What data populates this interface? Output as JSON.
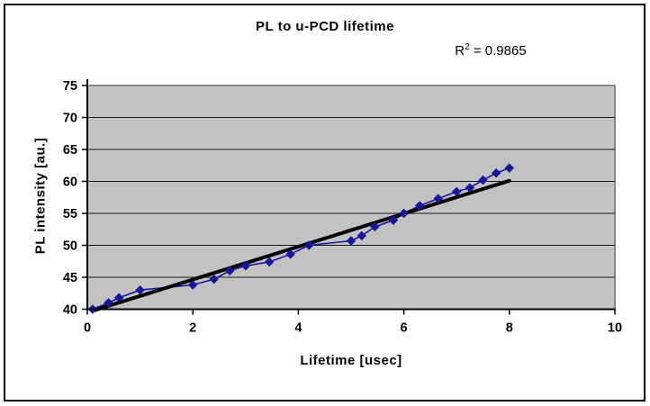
{
  "chart_data": {
    "type": "scatter",
    "title": "PL to u-PCD lifetime",
    "annotation": {
      "prefix": "R",
      "sup": "2",
      "rest": " = 0.9865"
    },
    "xlabel": "Lifetime [usec]",
    "ylabel": "PL intensity [au.]",
    "xlim": [
      0,
      10
    ],
    "ylim": [
      40,
      75
    ],
    "x_ticks": [
      0,
      2,
      4,
      6,
      8,
      10
    ],
    "y_ticks": [
      40,
      45,
      50,
      55,
      60,
      65,
      70,
      75
    ],
    "grid": "horizontal-only",
    "legend": "none",
    "series": [
      {
        "name": "PL intensity vs lifetime",
        "marker": "diamond",
        "points": [
          {
            "x": 0.1,
            "y": 40.0
          },
          {
            "x": 0.4,
            "y": 41.0
          },
          {
            "x": 0.6,
            "y": 41.8
          },
          {
            "x": 1.0,
            "y": 43.0
          },
          {
            "x": 2.0,
            "y": 43.8
          },
          {
            "x": 2.4,
            "y": 44.7
          },
          {
            "x": 2.7,
            "y": 46.0
          },
          {
            "x": 3.0,
            "y": 46.8
          },
          {
            "x": 3.45,
            "y": 47.4
          },
          {
            "x": 3.85,
            "y": 48.6
          },
          {
            "x": 4.2,
            "y": 50.0
          },
          {
            "x": 5.0,
            "y": 50.7
          },
          {
            "x": 5.2,
            "y": 51.5
          },
          {
            "x": 5.45,
            "y": 52.9
          },
          {
            "x": 5.8,
            "y": 53.9
          },
          {
            "x": 6.0,
            "y": 55.0
          },
          {
            "x": 6.3,
            "y": 56.2
          },
          {
            "x": 6.65,
            "y": 57.3
          },
          {
            "x": 7.0,
            "y": 58.4
          },
          {
            "x": 7.25,
            "y": 59.0
          },
          {
            "x": 7.5,
            "y": 60.2
          },
          {
            "x": 7.75,
            "y": 61.3
          },
          {
            "x": 8.0,
            "y": 62.1
          }
        ]
      }
    ],
    "trendline": {
      "type": "linear",
      "x1": 0.12,
      "y1": 39.8,
      "x2": 8.0,
      "y2": 60.1,
      "r_squared": 0.9865
    },
    "colors": {
      "plot_bg": "#c3c3c3",
      "plot_border": "#8a8a8a",
      "grid": "#1c1c1c",
      "axis": "#000000",
      "series": "#17179b",
      "trendline": "#000000",
      "text": "#000000"
    }
  }
}
